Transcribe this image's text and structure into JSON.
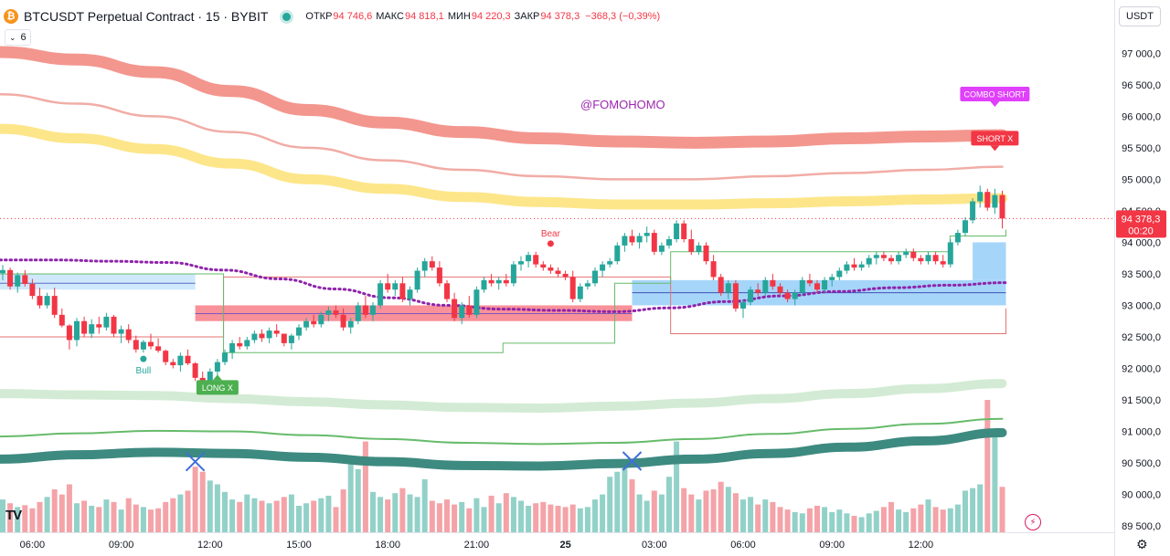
{
  "header": {
    "title": "BTCUSDT Perpetual Contract · 15 · BYBIT",
    "coin_symbol": "₿",
    "ohlc": [
      {
        "label": "ОТКР",
        "value": "94 746,6"
      },
      {
        "label": "МАКС",
        "value": "94 818,1"
      },
      {
        "label": "МИН",
        "value": "94 220,3"
      },
      {
        "label": "ЗАКР",
        "value": "94 378,3"
      }
    ],
    "change": "−368,3 (−0,39%)",
    "indicator_count": "6",
    "currency": "USDT"
  },
  "watermark": "@FOMOHOMO",
  "logo_text": "TV",
  "settings_icon": "gear-icon",
  "colors": {
    "up": "#26a69a",
    "down": "#f23645",
    "vol_up": "#92d1c8",
    "vol_down": "#f4a3a8",
    "accent": "#9c27b0"
  },
  "chart_data": {
    "type": "candlestick",
    "title": "",
    "ylim": [
      89400,
      97700
    ],
    "price_ticks": [
      "97 500,0",
      "97 000,0",
      "96 500,0",
      "96 000,0",
      "95 500,0",
      "95 000,0",
      "94 500,0",
      "94 000,0",
      "93 500,0",
      "93 000,0",
      "92 500,0",
      "92 000,0",
      "91 500,0",
      "91 000,0",
      "90 500,0",
      "90 000,0",
      "89 500,0"
    ],
    "price_tick_values": [
      97500,
      97000,
      96500,
      96000,
      95500,
      95000,
      94500,
      94000,
      93500,
      93000,
      92500,
      92000,
      91500,
      91000,
      90500,
      90000,
      89500
    ],
    "time_labels": [
      "06:00",
      "09:00",
      "12:00",
      "15:00",
      "18:00",
      "21:00",
      "25",
      "03:00",
      "06:00",
      "09:00",
      "12:00"
    ],
    "time_label_bars": [
      4,
      16,
      28,
      40,
      52,
      64,
      76,
      88,
      100,
      112,
      124
    ],
    "last_price": {
      "value": 94378.3,
      "label": "94 378,3",
      "countdown": "00:20"
    },
    "annotations": [
      {
        "text": "Bull",
        "bar": 19,
        "price": 92150,
        "color": "#26a69a"
      },
      {
        "text": "Bear",
        "bar": 74,
        "price": 93980,
        "color": "#f23645"
      },
      {
        "text": "LONG X",
        "bar": 29,
        "price": 91900,
        "style": "label-up",
        "color": "#4caf50"
      },
      {
        "text": "COMBO SHORT",
        "bar": 134,
        "price": 96150,
        "style": "label-down",
        "color": "#e040fb"
      },
      {
        "text": "SHORT X",
        "bar": 134,
        "price": 95450,
        "style": "label-down",
        "color": "#f23645"
      }
    ],
    "cross_markers": [
      {
        "bar": 26,
        "price": 90520
      },
      {
        "bar": 85,
        "price": 90530
      }
    ],
    "candles": [
      [
        93510,
        93640,
        93400,
        93560
      ],
      [
        93560,
        93600,
        93250,
        93300
      ],
      [
        93300,
        93520,
        93200,
        93480
      ],
      [
        93480,
        93560,
        93300,
        93340
      ],
      [
        93340,
        93420,
        93100,
        93150
      ],
      [
        93150,
        93280,
        92950,
        93000
      ],
      [
        93000,
        93200,
        92950,
        93150
      ],
      [
        93150,
        93280,
        92800,
        92850
      ],
      [
        92850,
        92950,
        92650,
        92680
      ],
      [
        92680,
        92700,
        92300,
        92450
      ],
      [
        92450,
        92800,
        92350,
        92750
      ],
      [
        92750,
        92820,
        92500,
        92550
      ],
      [
        92550,
        92780,
        92480,
        92700
      ],
      [
        92700,
        92820,
        92550,
        92650
      ],
      [
        92650,
        92880,
        92600,
        92820
      ],
      [
        92820,
        92850,
        92500,
        92550
      ],
      [
        92550,
        92680,
        92400,
        92620
      ],
      [
        92620,
        92700,
        92400,
        92450
      ],
      [
        92450,
        92520,
        92250,
        92300
      ],
      [
        92300,
        92450,
        92250,
        92420
      ],
      [
        92420,
        92550,
        92300,
        92350
      ],
      [
        92350,
        92480,
        92250,
        92280
      ],
      [
        92280,
        92300,
        92050,
        92100
      ],
      [
        92100,
        92150,
        92000,
        92050
      ],
      [
        92050,
        92250,
        91950,
        92200
      ],
      [
        92200,
        92300,
        92050,
        92080
      ],
      [
        92080,
        92100,
        91800,
        91850
      ],
      [
        91850,
        91950,
        91700,
        91750
      ],
      [
        91750,
        92000,
        91650,
        91950
      ],
      [
        91950,
        92150,
        91850,
        92100
      ],
      [
        92100,
        92300,
        92050,
        92250
      ],
      [
        92250,
        92450,
        92150,
        92400
      ],
      [
        92400,
        92500,
        92300,
        92350
      ],
      [
        92350,
        92500,
        92300,
        92450
      ],
      [
        92450,
        92600,
        92400,
        92550
      ],
      [
        92550,
        92620,
        92420,
        92480
      ],
      [
        92480,
        92650,
        92400,
        92600
      ],
      [
        92600,
        92700,
        92500,
        92550
      ],
      [
        92550,
        92550,
        92350,
        92400
      ],
      [
        92400,
        92550,
        92300,
        92520
      ],
      [
        92520,
        92700,
        92450,
        92650
      ],
      [
        92650,
        92800,
        92600,
        92750
      ],
      [
        92750,
        92850,
        92650,
        92700
      ],
      [
        92700,
        92900,
        92650,
        92850
      ],
      [
        92850,
        92980,
        92750,
        92920
      ],
      [
        92920,
        93000,
        92800,
        92850
      ],
      [
        92850,
        92950,
        92600,
        92650
      ],
      [
        92650,
        92800,
        92550,
        92750
      ],
      [
        92750,
        93050,
        92700,
        93000
      ],
      [
        93000,
        93150,
        92800,
        92850
      ],
      [
        92850,
        93050,
        92750,
        93000
      ],
      [
        93000,
        93400,
        92950,
        93350
      ],
      [
        93350,
        93500,
        93200,
        93250
      ],
      [
        93250,
        93400,
        93150,
        93350
      ],
      [
        93350,
        93450,
        93050,
        93100
      ],
      [
        93100,
        93300,
        93000,
        93250
      ],
      [
        93250,
        93600,
        93200,
        93550
      ],
      [
        93550,
        93750,
        93450,
        93700
      ],
      [
        93700,
        93780,
        93550,
        93600
      ],
      [
        93600,
        93700,
        93300,
        93350
      ],
      [
        93350,
        93400,
        93050,
        93100
      ],
      [
        93100,
        93200,
        92750,
        92800
      ],
      [
        92800,
        93050,
        92700,
        93000
      ],
      [
        93000,
        93150,
        92800,
        92850
      ],
      [
        92850,
        93300,
        92800,
        93250
      ],
      [
        93250,
        93450,
        93200,
        93400
      ],
      [
        93400,
        93500,
        93300,
        93350
      ],
      [
        93350,
        93450,
        93250,
        93400
      ],
      [
        93400,
        93500,
        93300,
        93350
      ],
      [
        93350,
        93700,
        93300,
        93650
      ],
      [
        93650,
        93780,
        93550,
        93700
      ],
      [
        93700,
        93850,
        93600,
        93800
      ],
      [
        93800,
        93850,
        93600,
        93650
      ],
      [
        93650,
        93700,
        93550,
        93600
      ],
      [
        93600,
        93650,
        93500,
        93550
      ],
      [
        93550,
        93600,
        93450,
        93500
      ],
      [
        93500,
        93550,
        93400,
        93450
      ],
      [
        93450,
        93550,
        93050,
        93100
      ],
      [
        93100,
        93350,
        93050,
        93300
      ],
      [
        93300,
        93400,
        93250,
        93350
      ],
      [
        93350,
        93600,
        93300,
        93550
      ],
      [
        93550,
        93700,
        93450,
        93650
      ],
      [
        93650,
        93750,
        93600,
        93700
      ],
      [
        93700,
        94000,
        93650,
        93950
      ],
      [
        93950,
        94150,
        93850,
        94100
      ],
      [
        94100,
        94200,
        93950,
        94000
      ],
      [
        94000,
        94150,
        93900,
        94100
      ],
      [
        94100,
        94250,
        94000,
        94150
      ],
      [
        94150,
        94200,
        93800,
        93850
      ],
      [
        93850,
        94000,
        93800,
        93950
      ],
      [
        93950,
        94100,
        93900,
        94050
      ],
      [
        94050,
        94350,
        94000,
        94300
      ],
      [
        94300,
        94350,
        94000,
        94050
      ],
      [
        94050,
        94200,
        93800,
        93850
      ],
      [
        93850,
        94000,
        93800,
        93950
      ],
      [
        93950,
        94000,
        93650,
        93700
      ],
      [
        93700,
        93800,
        93400,
        93450
      ],
      [
        93450,
        93500,
        93150,
        93200
      ],
      [
        93200,
        93400,
        93100,
        93350
      ],
      [
        93350,
        93400,
        92900,
        92950
      ],
      [
        92950,
        93100,
        92800,
        93050
      ],
      [
        93050,
        93300,
        93000,
        93250
      ],
      [
        93250,
        93350,
        93150,
        93200
      ],
      [
        93200,
        93450,
        93150,
        93400
      ],
      [
        93400,
        93500,
        93250,
        93300
      ],
      [
        93300,
        93350,
        93150,
        93200
      ],
      [
        93200,
        93250,
        93050,
        93100
      ],
      [
        93100,
        93250,
        93000,
        93200
      ],
      [
        93200,
        93450,
        93150,
        93400
      ],
      [
        93400,
        93500,
        93300,
        93350
      ],
      [
        93350,
        93400,
        93200,
        93250
      ],
      [
        93250,
        93450,
        93200,
        93400
      ],
      [
        93400,
        93500,
        93300,
        93450
      ],
      [
        93450,
        93600,
        93400,
        93550
      ],
      [
        93550,
        93700,
        93500,
        93650
      ],
      [
        93650,
        93750,
        93550,
        93600
      ],
      [
        93600,
        93700,
        93550,
        93650
      ],
      [
        93650,
        93800,
        93600,
        93750
      ],
      [
        93750,
        93850,
        93650,
        93800
      ],
      [
        93800,
        93850,
        93700,
        93750
      ],
      [
        93750,
        93800,
        93650,
        93700
      ],
      [
        93700,
        93850,
        93650,
        93800
      ],
      [
        93800,
        93900,
        93750,
        93850
      ],
      [
        93850,
        93900,
        93700,
        93750
      ],
      [
        93750,
        93800,
        93650,
        93700
      ],
      [
        93700,
        93850,
        93650,
        93800
      ],
      [
        93800,
        93850,
        93650,
        93700
      ],
      [
        93700,
        93800,
        93600,
        93650
      ],
      [
        93650,
        94050,
        93600,
        94000
      ],
      [
        94000,
        94200,
        93950,
        94150
      ],
      [
        94150,
        94400,
        94100,
        94350
      ],
      [
        94350,
        94700,
        94300,
        94650
      ],
      [
        94650,
        94900,
        94550,
        94800
      ],
      [
        94800,
        94850,
        94500,
        94550
      ],
      [
        94550,
        94850,
        94450,
        94750
      ],
      [
        94750,
        94820,
        94220,
        94378
      ]
    ],
    "volume": [
      260,
      230,
      200,
      215,
      190,
      240,
      280,
      340,
      300,
      380,
      230,
      250,
      210,
      200,
      260,
      240,
      180,
      270,
      220,
      200,
      180,
      190,
      240,
      270,
      300,
      330,
      520,
      480,
      410,
      380,
      320,
      260,
      240,
      300,
      270,
      250,
      230,
      250,
      280,
      300,
      210,
      230,
      250,
      270,
      290,
      200,
      340,
      560,
      500,
      720,
      320,
      280,
      260,
      310,
      350,
      300,
      280,
      420,
      250,
      230,
      260,
      220,
      240,
      190,
      270,
      200,
      290,
      230,
      310,
      280,
      250,
      210,
      230,
      240,
      220,
      210,
      200,
      220,
      190,
      200,
      260,
      300,
      440,
      480,
      520,
      420,
      300,
      250,
      330,
      300,
      440,
      720,
      350,
      300,
      260,
      330,
      340,
      400,
      360,
      310,
      260,
      280,
      220,
      260,
      240,
      200,
      180,
      160,
      150,
      190,
      210,
      200,
      160,
      180,
      150,
      130,
      120,
      150,
      170,
      200,
      240,
      180,
      160,
      190,
      220,
      260,
      200,
      180,
      190,
      220,
      330,
      350,
      380,
      1050,
      800,
      360,
      700
    ],
    "bands": {
      "red_outer": [
        97020,
        96900,
        96700,
        96400,
        96100,
        95900,
        95750,
        95650,
        95600,
        95580,
        95600,
        95650,
        95680,
        95700
      ],
      "red_thin": [
        96350,
        96200,
        96000,
        95750,
        95500,
        95300,
        95150,
        95050,
        95000,
        95000,
        95050,
        95100,
        95150,
        95200
      ],
      "yellow": [
        95800,
        95650,
        95480,
        95250,
        95000,
        94850,
        94720,
        94640,
        94600,
        94600,
        94620,
        94650,
        94680,
        94700
      ],
      "green_light": [
        91600,
        91580,
        91570,
        91520,
        91470,
        91420,
        91380,
        91370,
        91400,
        91450,
        91520,
        91600,
        91680,
        91760
      ],
      "green_mid": [
        90920,
        90970,
        91010,
        91000,
        90940,
        90880,
        90820,
        90800,
        90820,
        90880,
        90960,
        91040,
        91120,
        91200
      ],
      "teal_thick": [
        90560,
        90630,
        90670,
        90650,
        90590,
        90520,
        90460,
        90450,
        90490,
        90560,
        90650,
        90750,
        90850,
        90980
      ]
    },
    "trail_dotted": [
      93720,
      93720,
      93700,
      93680,
      93560,
      93420,
      93260,
      93120,
      93000,
      92940,
      92920,
      92900,
      92960,
      93060,
      93150,
      93220,
      93280,
      93320,
      93360
    ],
    "upper_envelope": [
      92500,
      92500,
      92500,
      92500,
      93450,
      93450,
      93450,
      93450,
      93450,
      93450,
      93450,
      93450,
      92550,
      92550,
      92550,
      92550,
      92550,
      92550,
      92950
    ],
    "lower_envelope": [
      93500,
      93500,
      93500,
      93500,
      92250,
      92250,
      92250,
      92250,
      92250,
      92400,
      92400,
      93350,
      93850,
      93850,
      93850,
      93850,
      93850,
      94100,
      94200
    ]
  }
}
